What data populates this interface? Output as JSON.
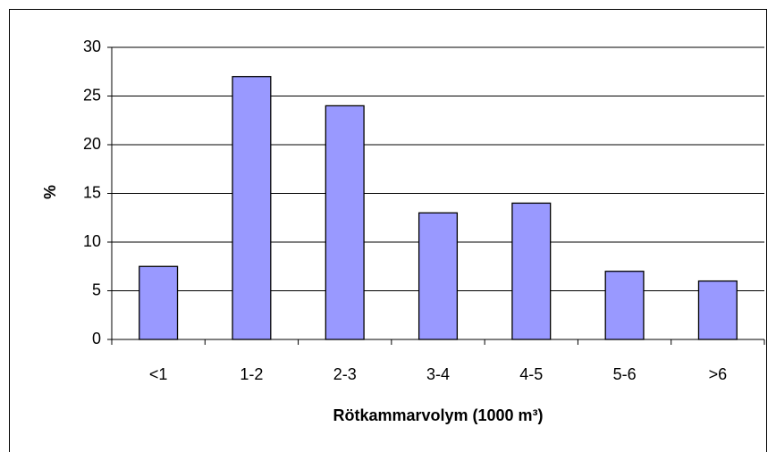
{
  "chart_data": {
    "type": "bar",
    "categories": [
      "<1",
      "1-2",
      "2-3",
      "3-4",
      "4-5",
      "5-6",
      ">6"
    ],
    "values": [
      7.5,
      27,
      24,
      13,
      14,
      7,
      6
    ],
    "color": "#9999ff",
    "xlabel": "Rötkammarvolym (1000 m³)",
    "ylabel": "%",
    "ylim": [
      0,
      30
    ],
    "yticks": [
      0,
      5,
      10,
      15,
      20,
      25,
      30
    ],
    "grid": true
  }
}
